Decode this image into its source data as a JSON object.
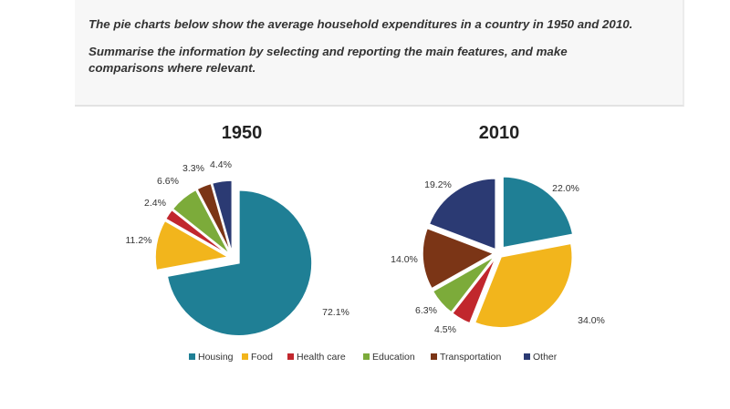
{
  "prompt": {
    "line1": "The pie charts below show the average household expenditures in a country in 1950 and 2010.",
    "line2": "Summarise the information by selecting and reporting the main features, and make comparisons where relevant."
  },
  "chart_data": [
    {
      "type": "pie",
      "title": "1950",
      "categories": [
        "Housing",
        "Food",
        "Health care",
        "Education",
        "Transportation",
        "Other"
      ],
      "values": [
        72.1,
        11.2,
        2.4,
        6.6,
        3.3,
        4.4
      ],
      "labels": [
        "72.1%",
        "11.2%",
        "2.4%",
        "6.6%",
        "3.3%",
        "4.4%"
      ],
      "exploded": "Housing",
      "legend_position": "bottom"
    },
    {
      "type": "pie",
      "title": "2010",
      "categories": [
        "Housing",
        "Food",
        "Health care",
        "Education",
        "Transportation",
        "Other"
      ],
      "values": [
        22.0,
        34.0,
        4.5,
        6.3,
        14.0,
        19.2
      ],
      "labels": [
        "22.0%",
        "34.0%",
        "4.5%",
        "6.3%",
        "14.0%",
        "19.2%"
      ],
      "exploded": "Housing",
      "legend_position": "bottom"
    }
  ],
  "legend": {
    "items": [
      {
        "label": "Housing",
        "color": "#1f7f95"
      },
      {
        "label": "Food",
        "color": "#f2b51c"
      },
      {
        "label": "Health care",
        "color": "#c1272d"
      },
      {
        "label": "Education",
        "color": "#7cab3a"
      },
      {
        "label": "Transportation",
        "color": "#7b3516"
      },
      {
        "label": "Other",
        "color": "#2b3a73"
      }
    ]
  }
}
